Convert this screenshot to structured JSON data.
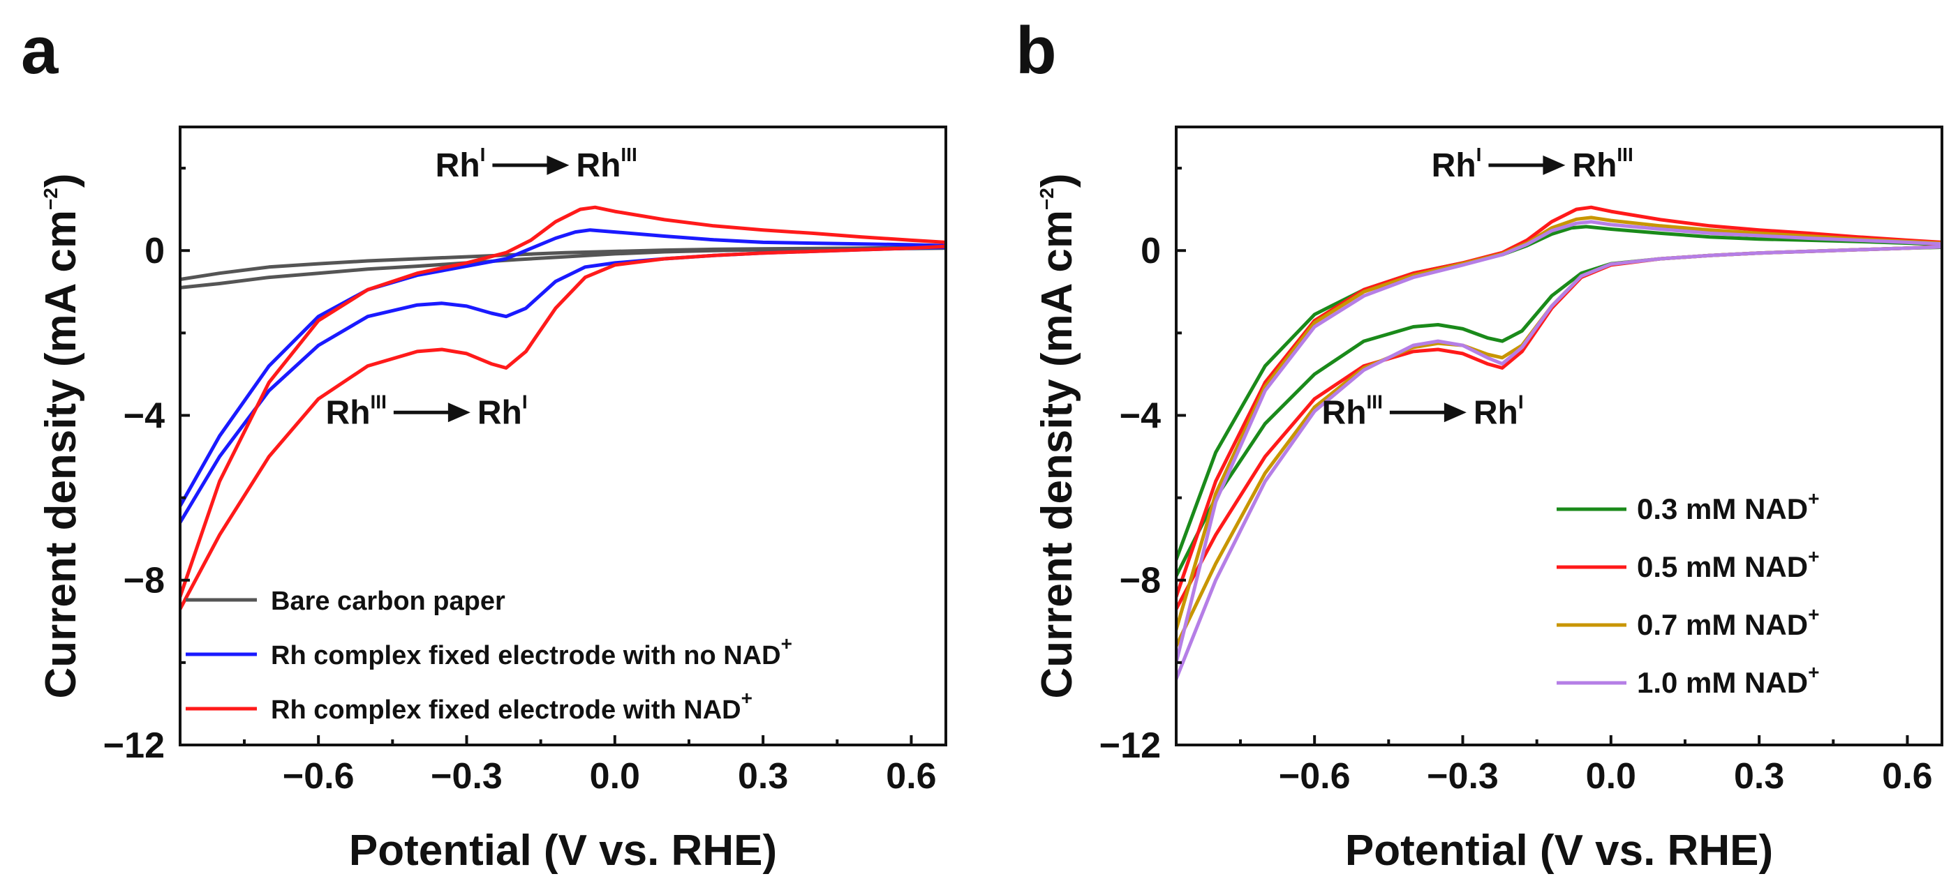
{
  "chart_data": [
    {
      "type": "line",
      "panel": "a",
      "title": "",
      "xlabel": "Potential (V vs. RHE)",
      "ylabel": "Current density (mA cm−2)",
      "ylabel_base": "Current density (mA cm",
      "ylabel_exp": "−2",
      "ylabel_end": ")",
      "xlim": [
        -0.88,
        0.67
      ],
      "ylim": [
        -12,
        3
      ],
      "xticks": [
        -0.6,
        -0.3,
        0.0,
        0.3,
        0.6
      ],
      "xtick_labels": [
        "−0.6",
        "−0.3",
        "0.0",
        "0.3",
        "0.6"
      ],
      "yticks": [
        -12,
        -8,
        -4,
        0
      ],
      "ytick_labels": [
        "−12",
        "−8",
        "−4",
        "0"
      ],
      "legend_position": "bottom-left",
      "annotations": [
        {
          "base1": "Rh",
          "sup1": "I",
          "base2": "Rh",
          "sup2": "III",
          "x": -0.05,
          "y": 1.8,
          "label": "RhI → RhIII"
        },
        {
          "base1": "Rh",
          "sup1": "III",
          "base2": "Rh",
          "sup2": "I",
          "x": -0.25,
          "y": -4.2,
          "label": "RhIII → RhI"
        }
      ],
      "series": [
        {
          "name": "Bare carbon paper",
          "legend_base": "Bare carbon paper",
          "legend_sup": "",
          "color": "#555555",
          "x": [
            -0.88,
            -0.8,
            -0.7,
            -0.6,
            -0.5,
            -0.4,
            -0.3,
            -0.2,
            -0.1,
            0.0,
            0.1,
            0.2,
            0.3,
            0.4,
            0.5,
            0.6,
            0.67,
            0.67,
            0.6,
            0.5,
            0.4,
            0.3,
            0.2,
            0.1,
            0.0,
            -0.1,
            -0.2,
            -0.3,
            -0.4,
            -0.5,
            -0.6,
            -0.7,
            -0.8,
            -0.88
          ],
          "y": [
            -0.9,
            -0.8,
            -0.65,
            -0.55,
            -0.45,
            -0.38,
            -0.3,
            -0.22,
            -0.15,
            -0.08,
            -0.03,
            0.0,
            0.02,
            0.03,
            0.04,
            0.05,
            0.06,
            0.07,
            0.07,
            0.06,
            0.05,
            0.04,
            0.03,
            0.01,
            -0.02,
            -0.05,
            -0.1,
            -0.15,
            -0.2,
            -0.25,
            -0.32,
            -0.4,
            -0.55,
            -0.7
          ]
        },
        {
          "name": "Rh complex fixed electrode with no NAD+",
          "legend_base": "Rh complex fixed electrode with no NAD",
          "legend_sup": "+",
          "color": "#1a1aff",
          "x": [
            -0.88,
            -0.8,
            -0.7,
            -0.6,
            -0.5,
            -0.4,
            -0.35,
            -0.3,
            -0.25,
            -0.22,
            -0.18,
            -0.12,
            -0.06,
            0.0,
            0.1,
            0.2,
            0.3,
            0.4,
            0.5,
            0.6,
            0.67,
            0.67,
            0.6,
            0.5,
            0.4,
            0.3,
            0.2,
            0.1,
            0.0,
            -0.05,
            -0.08,
            -0.12,
            -0.17,
            -0.22,
            -0.3,
            -0.4,
            -0.5,
            -0.6,
            -0.7,
            -0.8,
            -0.88
          ],
          "y": [
            -6.6,
            -5.0,
            -3.4,
            -2.3,
            -1.6,
            -1.32,
            -1.28,
            -1.35,
            -1.52,
            -1.6,
            -1.4,
            -0.75,
            -0.4,
            -0.3,
            -0.2,
            -0.12,
            -0.06,
            -0.02,
            0.02,
            0.06,
            0.08,
            0.12,
            0.14,
            0.16,
            0.18,
            0.2,
            0.26,
            0.35,
            0.45,
            0.5,
            0.45,
            0.3,
            0.05,
            -0.2,
            -0.38,
            -0.6,
            -0.95,
            -1.6,
            -2.8,
            -4.5,
            -6.2
          ]
        },
        {
          "name": "Rh complex fixed electrode with NAD+",
          "legend_base": "Rh complex fixed electrode with NAD",
          "legend_sup": "+",
          "color": "#ff1a1a",
          "x": [
            -0.88,
            -0.8,
            -0.7,
            -0.6,
            -0.5,
            -0.4,
            -0.35,
            -0.3,
            -0.25,
            -0.22,
            -0.18,
            -0.12,
            -0.06,
            0.0,
            0.1,
            0.2,
            0.3,
            0.4,
            0.5,
            0.6,
            0.67,
            0.67,
            0.6,
            0.5,
            0.4,
            0.3,
            0.2,
            0.1,
            0.0,
            -0.04,
            -0.07,
            -0.12,
            -0.17,
            -0.22,
            -0.3,
            -0.4,
            -0.5,
            -0.6,
            -0.7,
            -0.8,
            -0.88
          ],
          "y": [
            -8.7,
            -6.9,
            -5.0,
            -3.6,
            -2.8,
            -2.45,
            -2.4,
            -2.5,
            -2.75,
            -2.85,
            -2.45,
            -1.4,
            -0.65,
            -0.35,
            -0.2,
            -0.12,
            -0.06,
            -0.02,
            0.02,
            0.06,
            0.1,
            0.2,
            0.25,
            0.33,
            0.42,
            0.5,
            0.6,
            0.75,
            0.95,
            1.05,
            1.0,
            0.7,
            0.25,
            -0.05,
            -0.3,
            -0.55,
            -0.95,
            -1.7,
            -3.2,
            -5.6,
            -8.4
          ]
        }
      ]
    },
    {
      "type": "line",
      "panel": "b",
      "title": "",
      "xlabel": "Potential (V vs. RHE)",
      "ylabel": "Current density (mA cm−2)",
      "ylabel_base": "Current density (mA cm",
      "ylabel_exp": "−2",
      "ylabel_end": ")",
      "xlim": [
        -0.88,
        0.67
      ],
      "ylim": [
        -12,
        3
      ],
      "xticks": [
        -0.6,
        -0.3,
        0.0,
        0.3,
        0.6
      ],
      "xtick_labels": [
        "−0.6",
        "−0.3",
        "0.0",
        "0.3",
        "0.6"
      ],
      "yticks": [
        -12,
        -8,
        -4,
        0
      ],
      "ytick_labels": [
        "−12",
        "−8",
        "−4",
        "0"
      ],
      "legend_position": "bottom-right",
      "annotations": [
        {
          "base1": "Rh",
          "sup1": "I",
          "base2": "Rh",
          "sup2": "III",
          "x": -0.05,
          "y": 1.8,
          "label": "RhI → RhIII"
        },
        {
          "base1": "Rh",
          "sup1": "III",
          "base2": "Rh",
          "sup2": "I",
          "x": -0.25,
          "y": -4.2,
          "label": "RhIII → RhI"
        }
      ],
      "series": [
        {
          "name": "0.3 mM NAD+",
          "legend_base": "0.3 mM NAD",
          "legend_sup": "+",
          "color": "#1a8a1a",
          "x": [
            -0.88,
            -0.8,
            -0.7,
            -0.6,
            -0.5,
            -0.4,
            -0.35,
            -0.3,
            -0.25,
            -0.22,
            -0.18,
            -0.12,
            -0.06,
            0.0,
            0.1,
            0.2,
            0.3,
            0.4,
            0.5,
            0.6,
            0.67,
            0.67,
            0.6,
            0.5,
            0.4,
            0.3,
            0.2,
            0.1,
            0.0,
            -0.05,
            -0.08,
            -0.12,
            -0.17,
            -0.22,
            -0.3,
            -0.4,
            -0.5,
            -0.6,
            -0.7,
            -0.8,
            -0.88
          ],
          "y": [
            -7.9,
            -6.0,
            -4.2,
            -3.0,
            -2.2,
            -1.85,
            -1.8,
            -1.9,
            -2.12,
            -2.2,
            -1.95,
            -1.1,
            -0.55,
            -0.32,
            -0.2,
            -0.12,
            -0.06,
            -0.02,
            0.02,
            0.06,
            0.08,
            0.15,
            0.18,
            0.22,
            0.25,
            0.28,
            0.33,
            0.42,
            0.52,
            0.58,
            0.55,
            0.4,
            0.12,
            -0.1,
            -0.3,
            -0.55,
            -0.95,
            -1.55,
            -2.8,
            -4.9,
            -7.5
          ]
        },
        {
          "name": "0.5 mM NAD+",
          "legend_base": "0.5 mM NAD",
          "legend_sup": "+",
          "color": "#ff1a1a",
          "x": [
            -0.88,
            -0.8,
            -0.7,
            -0.6,
            -0.5,
            -0.4,
            -0.35,
            -0.3,
            -0.25,
            -0.22,
            -0.18,
            -0.12,
            -0.06,
            0.0,
            0.1,
            0.2,
            0.3,
            0.4,
            0.5,
            0.6,
            0.67,
            0.67,
            0.6,
            0.5,
            0.4,
            0.3,
            0.2,
            0.1,
            0.0,
            -0.04,
            -0.07,
            -0.12,
            -0.17,
            -0.22,
            -0.3,
            -0.4,
            -0.5,
            -0.6,
            -0.7,
            -0.8,
            -0.88
          ],
          "y": [
            -8.7,
            -6.9,
            -5.0,
            -3.6,
            -2.8,
            -2.45,
            -2.4,
            -2.5,
            -2.75,
            -2.85,
            -2.45,
            -1.4,
            -0.65,
            -0.35,
            -0.2,
            -0.12,
            -0.06,
            -0.02,
            0.02,
            0.06,
            0.1,
            0.2,
            0.25,
            0.33,
            0.42,
            0.5,
            0.6,
            0.75,
            0.95,
            1.05,
            1.0,
            0.7,
            0.25,
            -0.05,
            -0.3,
            -0.55,
            -0.95,
            -1.7,
            -3.2,
            -5.6,
            -8.4
          ]
        },
        {
          "name": "0.7 mM NAD+",
          "legend_base": "0.7 mM NAD",
          "legend_sup": "+",
          "color": "#c89600",
          "x": [
            -0.88,
            -0.8,
            -0.7,
            -0.6,
            -0.5,
            -0.4,
            -0.35,
            -0.3,
            -0.25,
            -0.22,
            -0.18,
            -0.12,
            -0.06,
            0.0,
            0.1,
            0.2,
            0.3,
            0.4,
            0.5,
            0.6,
            0.67,
            0.67,
            0.6,
            0.5,
            0.4,
            0.3,
            0.2,
            0.1,
            0.0,
            -0.04,
            -0.07,
            -0.12,
            -0.17,
            -0.22,
            -0.3,
            -0.4,
            -0.5,
            -0.6,
            -0.7,
            -0.8,
            -0.88
          ],
          "y": [
            -9.6,
            -7.6,
            -5.4,
            -3.8,
            -2.85,
            -2.35,
            -2.25,
            -2.3,
            -2.52,
            -2.6,
            -2.3,
            -1.35,
            -0.62,
            -0.33,
            -0.2,
            -0.12,
            -0.06,
            -0.02,
            0.02,
            0.06,
            0.09,
            0.18,
            0.22,
            0.28,
            0.35,
            0.42,
            0.5,
            0.6,
            0.73,
            0.8,
            0.76,
            0.55,
            0.18,
            -0.08,
            -0.32,
            -0.6,
            -1.0,
            -1.75,
            -3.3,
            -5.9,
            -9.2
          ]
        },
        {
          "name": "1.0 mM NAD+",
          "legend_base": "1.0 mM NAD",
          "legend_sup": "+",
          "color": "#b57ee6",
          "x": [
            -0.88,
            -0.8,
            -0.7,
            -0.6,
            -0.5,
            -0.4,
            -0.35,
            -0.3,
            -0.25,
            -0.22,
            -0.18,
            -0.12,
            -0.06,
            0.0,
            0.1,
            0.2,
            0.3,
            0.4,
            0.5,
            0.6,
            0.67,
            0.67,
            0.6,
            0.5,
            0.4,
            0.3,
            0.2,
            0.1,
            0.0,
            -0.04,
            -0.07,
            -0.12,
            -0.17,
            -0.22,
            -0.3,
            -0.4,
            -0.5,
            -0.6,
            -0.7,
            -0.8,
            -0.88
          ],
          "y": [
            -10.4,
            -8.0,
            -5.6,
            -3.9,
            -2.9,
            -2.3,
            -2.2,
            -2.3,
            -2.6,
            -2.75,
            -2.35,
            -1.35,
            -0.62,
            -0.33,
            -0.2,
            -0.12,
            -0.06,
            -0.02,
            0.02,
            0.06,
            0.09,
            0.16,
            0.2,
            0.25,
            0.3,
            0.36,
            0.42,
            0.52,
            0.63,
            0.7,
            0.66,
            0.48,
            0.15,
            -0.1,
            -0.35,
            -0.65,
            -1.1,
            -1.85,
            -3.4,
            -6.1,
            -10.0
          ]
        }
      ]
    }
  ]
}
